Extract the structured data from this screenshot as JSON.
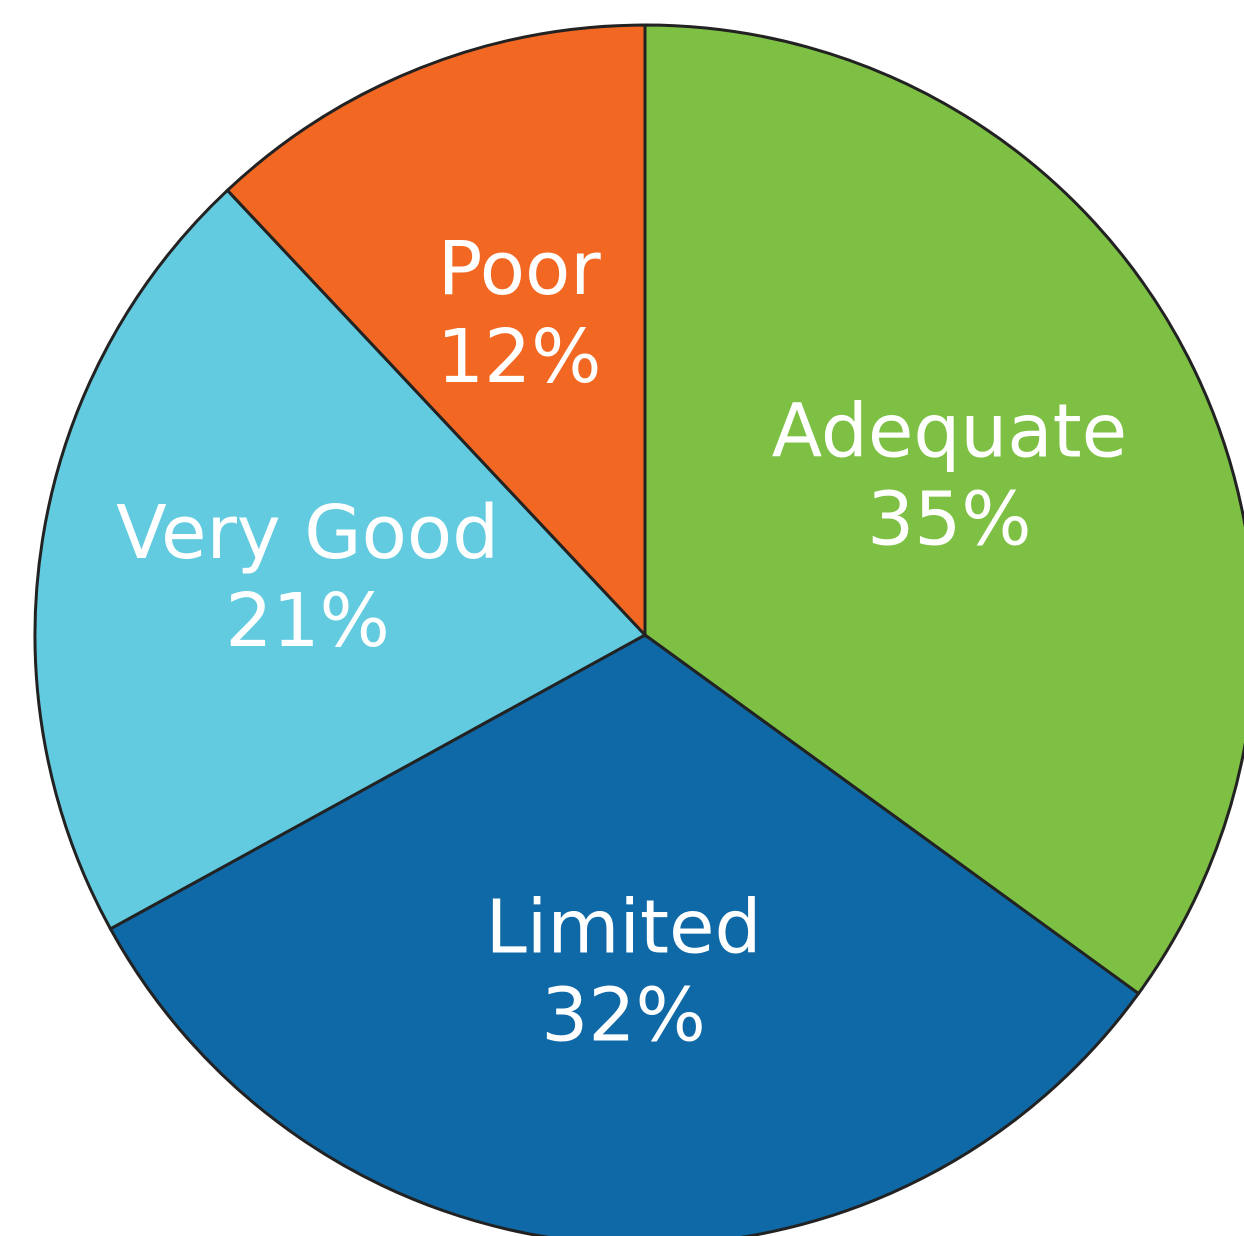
{
  "chart_data": {
    "type": "pie",
    "categories": [
      "Adequate",
      "Limited",
      "Very Good",
      "Poor"
    ],
    "values": [
      35,
      32,
      21,
      12
    ],
    "value_labels": [
      "35%",
      "32%",
      "21%",
      "12%"
    ],
    "colors": [
      "#7dc043",
      "#0f69a7",
      "#63cbe0",
      "#f26822"
    ]
  }
}
